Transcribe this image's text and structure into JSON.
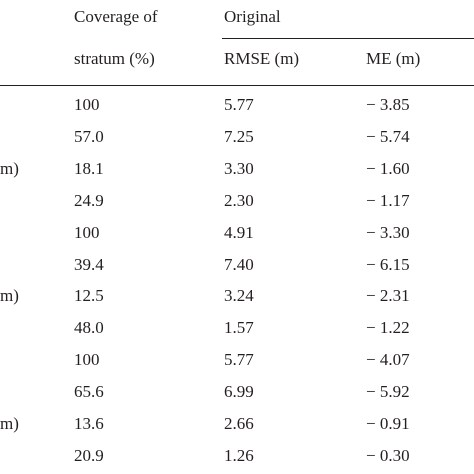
{
  "table": {
    "header": {
      "coverage_line1": "Coverage of",
      "coverage_line2": "stratum (%)",
      "group": "Original",
      "rmse": "RMSE (m)",
      "me": "ME (m)"
    },
    "rows": [
      {
        "cells": [
          "100",
          "5.77",
          "− 3.85"
        ]
      },
      {
        "cells": [
          "57.0",
          "7.25",
          "− 5.74"
        ]
      },
      {
        "stub": "m)",
        "cells": [
          "18.1",
          "3.30",
          "− 1.60"
        ]
      },
      {
        "cells": [
          "24.9",
          "2.30",
          "− 1.17"
        ]
      },
      {
        "cells": [
          "100",
          "4.91",
          "− 3.30"
        ]
      },
      {
        "cells": [
          "39.4",
          "7.40",
          "− 6.15"
        ]
      },
      {
        "stub": "m)",
        "cells": [
          "12.5",
          "3.24",
          "− 2.31"
        ]
      },
      {
        "cells": [
          "48.0",
          "1.57",
          "− 1.22"
        ]
      },
      {
        "cells": [
          "100",
          "5.77",
          "− 4.07"
        ]
      },
      {
        "cells": [
          "65.6",
          "6.99",
          "− 5.92"
        ]
      },
      {
        "stub": "m)",
        "cells": [
          "13.6",
          "2.66",
          "− 0.91"
        ]
      },
      {
        "cells": [
          "20.9",
          "1.26",
          "− 0.30"
        ]
      }
    ]
  }
}
